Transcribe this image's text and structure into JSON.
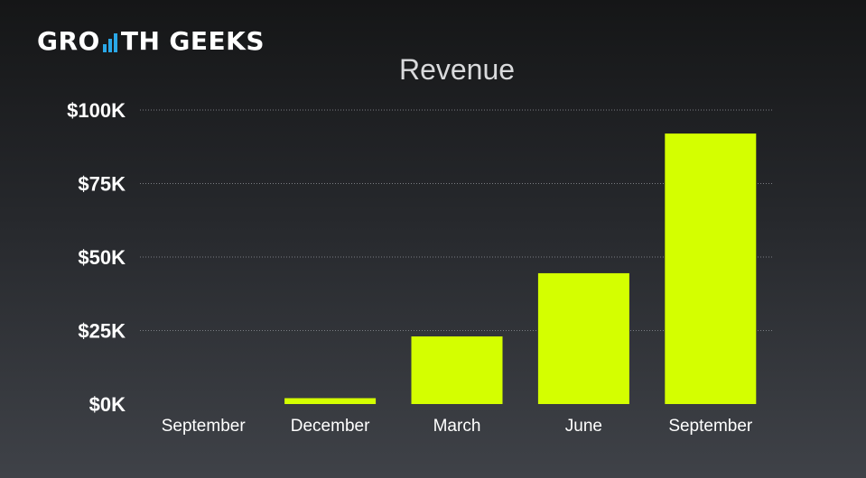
{
  "brand": {
    "name_part1": "GRO",
    "name_part2": "TH",
    "name_part3": "GEEKS",
    "icon": "bar-chart-icon",
    "icon_color": "#2aa8e8"
  },
  "chart_data": {
    "type": "bar",
    "title": "Revenue",
    "xlabel": "",
    "ylabel": "",
    "categories": [
      "September",
      "December",
      "March",
      "June",
      "September"
    ],
    "values": [
      0,
      2000,
      23000,
      44500,
      92000
    ],
    "ylim": [
      0,
      100000
    ],
    "yticks": [
      0,
      25000,
      50000,
      75000,
      100000
    ],
    "ytick_labels": [
      "$0K",
      "$25K",
      "$50K",
      "$75K",
      "$100K"
    ],
    "grid": true,
    "bar_color": "#d4ff00",
    "background": "#1f2023"
  }
}
